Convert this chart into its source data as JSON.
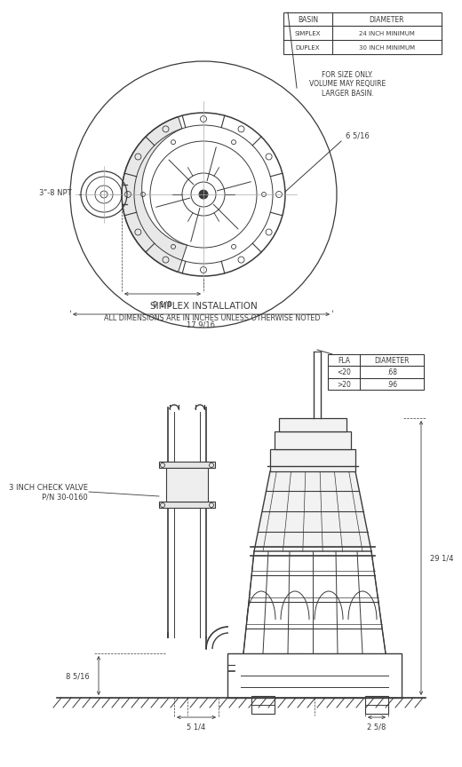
{
  "bg_color": "#ffffff",
  "lc": "#3a3a3a",
  "note1": "FOR SIZE ONLY.\nVOLUME MAY REQUIRE\nLARGER BASIN.",
  "label_npt": "3\"-8 NPT",
  "label_check_valve": "3 INCH CHECK VALVE\nP/N 30-0160",
  "dim_65_16": "6 5/16",
  "dim_91_8": "9 1/8",
  "dim_179_16": "17 9/16",
  "dim_29_14": "29 1/4",
  "dim_85_16": "8 5/16",
  "dim_51_4": "5 1/4",
  "dim_25_8": "2 5/8",
  "title1": "SIMPLEX INSTALLATION",
  "title2": "ALL DIMENSIONS ARE IN INCHES UNLESS OTHERWISE NOTED",
  "t1_headers": [
    "BASIN",
    "DIAMETER"
  ],
  "t1_rows": [
    [
      "SIMPLEX",
      "24 INCH MINIMUM"
    ],
    [
      "DUPLEX",
      "30 INCH MINIMUM"
    ]
  ],
  "t2_headers": [
    "FLA",
    "DIAMETER"
  ],
  "t2_rows": [
    [
      "<20",
      ".68"
    ],
    [
      ">20",
      ".96"
    ]
  ]
}
